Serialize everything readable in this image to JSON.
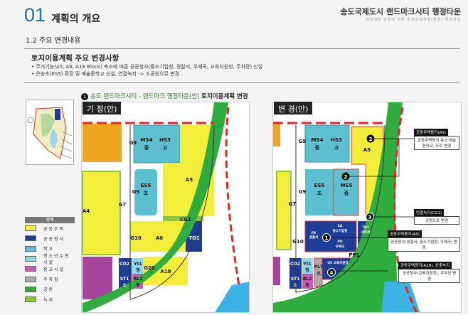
{
  "header": {
    "number": "01",
    "title": "계획의 개요",
    "brand": "송도국제도시 랜드마크시티 행정타운",
    "brand_sub": "개발계획 변경에 따른 경관상세계획(변경) 경관심의",
    "subtitle": "1.2 주요 변경내용"
  },
  "summary": {
    "title": "토지이용계획 주요 변경사항",
    "bullets": [
      "주거기능(A5, A6, A18 Block) 축소에 따른 공공청사(중소기업청, 경찰서, 우체국, 교육지원청, 주차장) 신설",
      "은송초(ES5) 확장 및 예술중학교 신설, 연결녹지 -> 소공원으로 변경"
    ]
  },
  "caption": {
    "num": "1",
    "text": "송도 랜드마크시티 - 랜드마크 행정타운(안)",
    "bold": "토지이용계획 변경"
  },
  "legend": {
    "title": "범례",
    "items": [
      {
        "label": "공동주택",
        "color": "#f2ee3a"
      },
      {
        "label": "공공청사",
        "color": "#1d3d97"
      },
      {
        "label": "학교",
        "color": "#5cc0d0"
      },
      {
        "label": "청소년수련시설",
        "color": "#8fd6ee"
      },
      {
        "label": "종교시설",
        "color": "#c75ab5"
      },
      {
        "label": "주차장",
        "color": "#a9a9a9"
      },
      {
        "label": "공원",
        "color": "#2fae3f"
      },
      {
        "label": "녹지",
        "color": "#8cc63f"
      }
    ]
  },
  "map_before": {
    "tag": "기 정(안)",
    "labels": {
      "ms4": "MS4",
      "ms4s": "중",
      "hs3": "HS3",
      "hs3s": "고",
      "a5": "A5",
      "es5": "ES5",
      "es5s": "초",
      "g7": "G7",
      "a4": "A4",
      "g9": "G9",
      "g9b": "G9",
      "cg1": "CG1",
      "g10": "G10",
      "a6": "A6",
      "to1": "TO1",
      "co2": "CO2",
      "yt1": "Yt1",
      "yt1s": "청",
      "g20": "G20",
      "a18": "A18",
      "st1": "ST1",
      "st1s": "소",
      "rl2": "RL2",
      "rl2s": "종"
    }
  },
  "map_after": {
    "tag": "변 경(안)",
    "labels": {
      "ms4": "MS4",
      "ms4s": "중",
      "hs3": "HS3",
      "hs3s": "고",
      "a5": "A5",
      "es5": "ES5",
      "es5s": "초",
      "ms5": "MS5",
      "ms5s": "중",
      "g7": "G7",
      "g9": "G9",
      "g9b": "G9",
      "g10": "G10",
      "ps": "PS",
      "pss": "경찰서",
      "ea": "EA",
      "eas": "중소기업청",
      "po": "PO",
      "pos": "우체국",
      "to1": "TO1",
      "to1s": "세무서",
      "pp1": "PP1",
      "co2": "CO2",
      "yt1": "Yt1",
      "yt1s": "청",
      "pl7": "PL7",
      "pl7s": "주",
      "oe": "OE 교육지원청",
      "st1": "ST1",
      "st1s": "소",
      "rl2": "RL2",
      "rl2s": "종"
    },
    "markers": [
      "2",
      "2",
      "3",
      "1",
      "4"
    ],
    "callouts": [
      {
        "title": "공동주택용지(A5)",
        "body": "공동주택용지 축소 예술중학교, 도로 변경"
      },
      {
        "title": "연결녹지(CG1)",
        "body": "공원으로 변경"
      },
      {
        "title": "공동주택용지(A6)",
        "body": "공공청사(경찰서, 중소기업청, 우체국) 변경"
      },
      {
        "title": "공동주택용지(A18), 완충녹지",
        "body": "공공청사(교육지원청), 주차장 변경"
      }
    ]
  }
}
